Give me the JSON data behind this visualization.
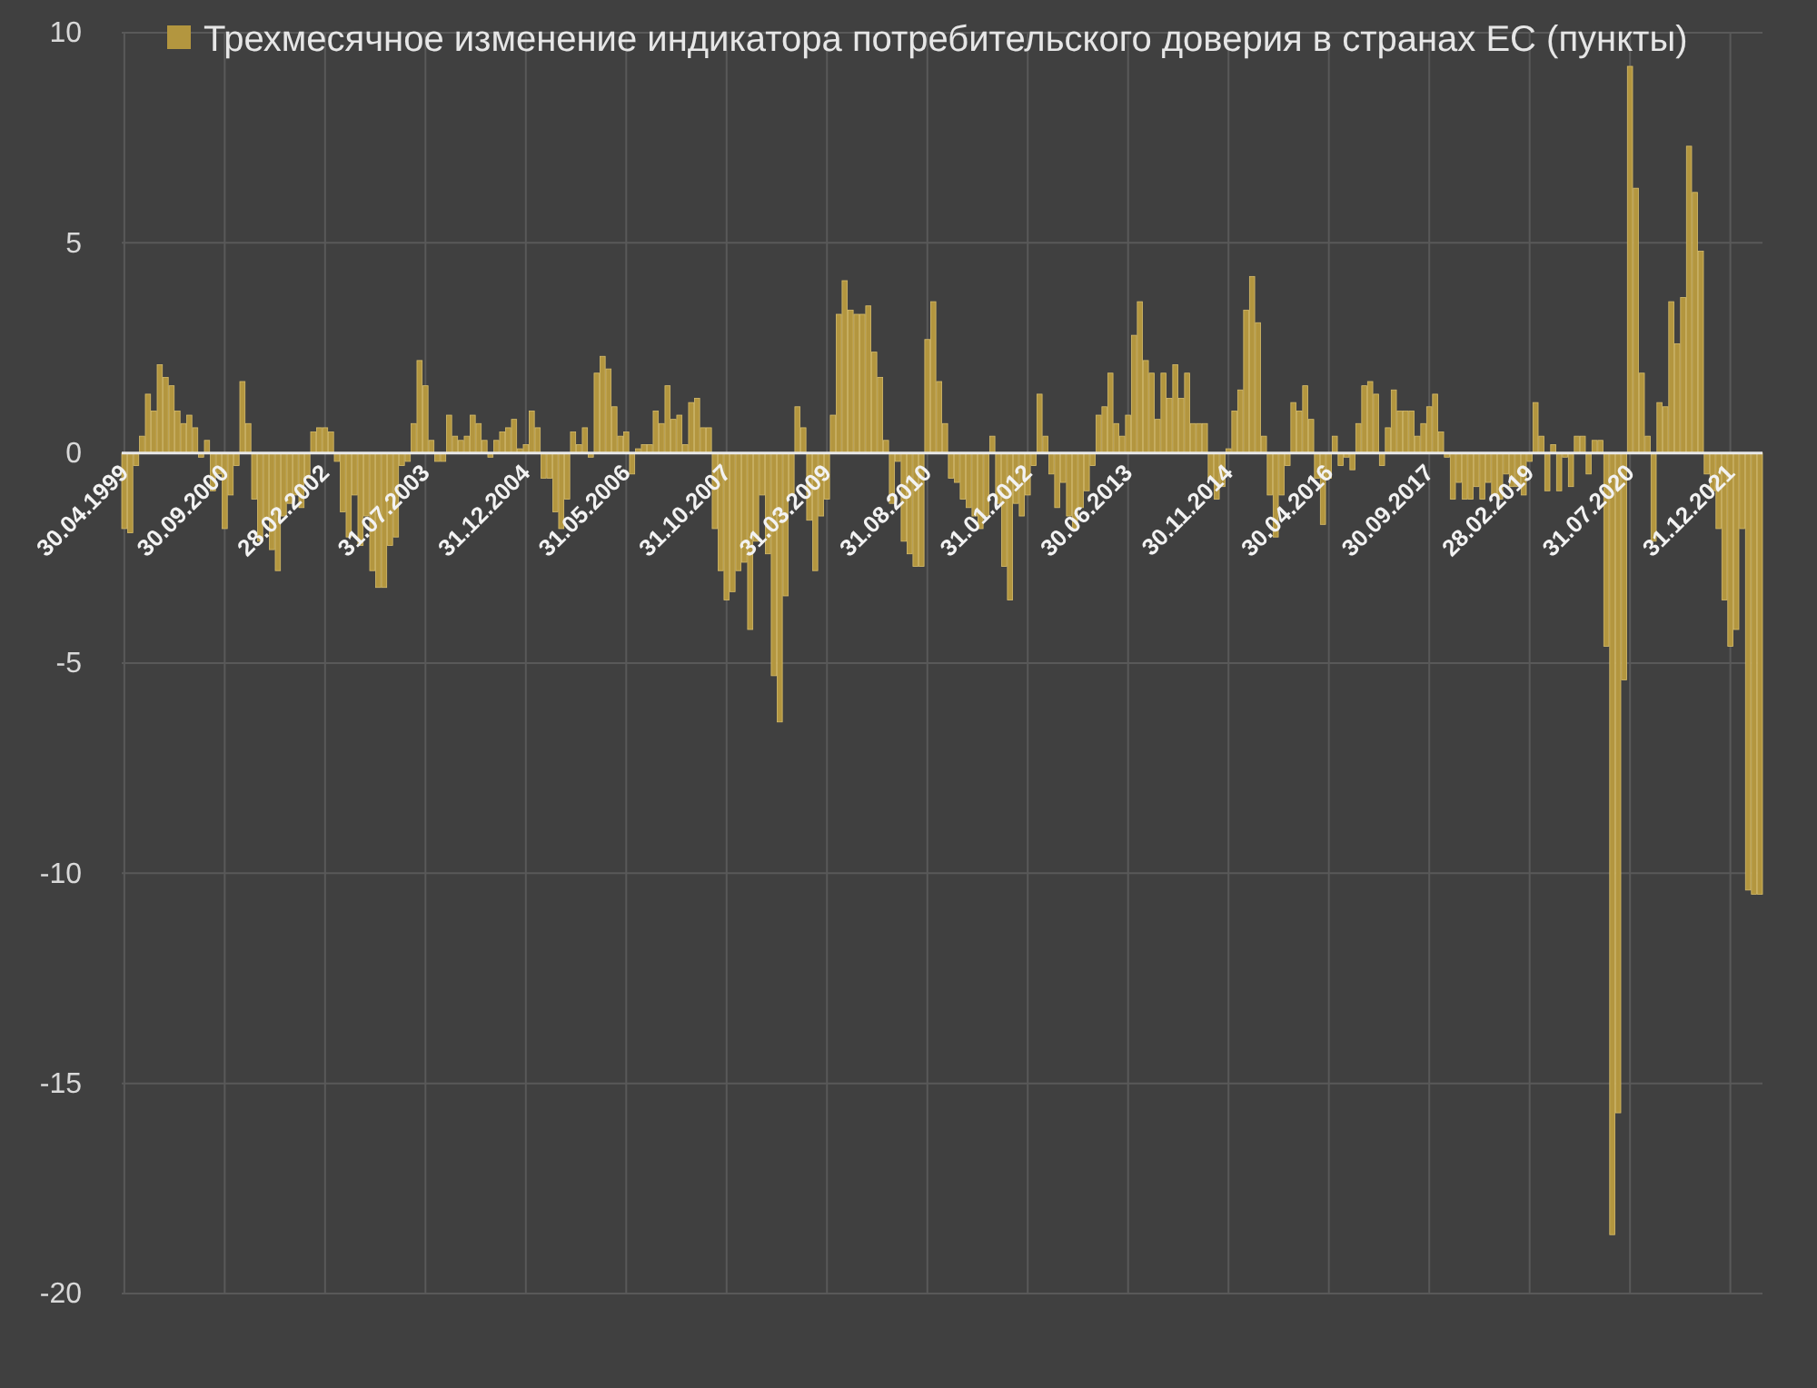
{
  "chart_data": {
    "type": "bar",
    "categories": [
      "30.04.1999",
      null,
      null,
      null,
      null,
      null,
      null,
      null,
      null,
      null,
      null,
      null,
      null,
      null,
      null,
      null,
      null,
      "30.09.2000",
      null,
      null,
      null,
      null,
      null,
      null,
      null,
      null,
      null,
      null,
      null,
      null,
      null,
      null,
      null,
      null,
      "28.02.2002",
      null,
      null,
      null,
      null,
      null,
      null,
      null,
      null,
      null,
      null,
      null,
      null,
      null,
      null,
      null,
      null,
      "31.07.2003",
      null,
      null,
      null,
      null,
      null,
      null,
      null,
      null,
      null,
      null,
      null,
      null,
      null,
      null,
      null,
      null,
      "31.12.2004",
      null,
      null,
      null,
      null,
      null,
      null,
      null,
      null,
      null,
      null,
      null,
      null,
      null,
      null,
      null,
      null,
      "31.05.2006",
      null,
      null,
      null,
      null,
      null,
      null,
      null,
      null,
      null,
      null,
      null,
      null,
      null,
      null,
      null,
      null,
      "31.10.2007",
      null,
      null,
      null,
      null,
      null,
      null,
      null,
      null,
      null,
      null,
      null,
      null,
      null,
      null,
      null,
      null,
      "31.03.2009",
      null,
      null,
      null,
      null,
      null,
      null,
      null,
      null,
      null,
      null,
      null,
      null,
      null,
      null,
      null,
      null,
      "31.08.2010",
      null,
      null,
      null,
      null,
      null,
      null,
      null,
      null,
      null,
      null,
      null,
      null,
      null,
      null,
      null,
      null,
      "31.01.2012",
      null,
      null,
      null,
      null,
      null,
      null,
      null,
      null,
      null,
      null,
      null,
      null,
      null,
      null,
      null,
      null,
      "30.06.2013",
      null,
      null,
      null,
      null,
      null,
      null,
      null,
      null,
      null,
      null,
      null,
      null,
      null,
      null,
      null,
      null,
      "30.11.2014",
      null,
      null,
      null,
      null,
      null,
      null,
      null,
      null,
      null,
      null,
      null,
      null,
      null,
      null,
      null,
      null,
      "30.04.2016",
      null,
      null,
      null,
      null,
      null,
      null,
      null,
      null,
      null,
      null,
      null,
      null,
      null,
      null,
      null,
      null,
      "30.09.2017",
      null,
      null,
      null,
      null,
      null,
      null,
      null,
      null,
      null,
      null,
      null,
      null,
      null,
      null,
      null,
      null,
      "28.02.2019",
      null,
      null,
      null,
      null,
      null,
      null,
      null,
      null,
      null,
      null,
      null,
      null,
      null,
      null,
      null,
      null,
      "31.07.2020",
      null,
      null,
      null,
      null,
      null,
      null,
      null,
      null,
      null,
      null,
      null,
      null,
      null,
      null,
      null,
      null,
      "31.12.2021",
      null,
      null,
      null,
      null,
      null
    ],
    "series": [
      {
        "name": "Трехмесячное изменение индикатора потребительского доверия в странах ЕС (пункты)",
        "color": "#b3963f",
        "values": [
          -1.8,
          -1.9,
          -0.3,
          0.4,
          1.4,
          1.0,
          2.1,
          1.8,
          1.6,
          1.0,
          0.7,
          0.9,
          0.6,
          -0.1,
          0.3,
          -0.9,
          -0.5,
          -1.8,
          -1.0,
          -0.3,
          1.7,
          0.7,
          -1.1,
          -2.1,
          -1.6,
          -2.3,
          -2.8,
          -1.5,
          -1.2,
          -1.0,
          -1.3,
          -0.6,
          0.5,
          0.6,
          0.6,
          0.5,
          -0.2,
          -1.4,
          -2.0,
          -1.0,
          -2.2,
          -1.5,
          -2.8,
          -3.2,
          -3.2,
          -2.2,
          -2.0,
          -0.3,
          -0.2,
          0.7,
          2.2,
          1.6,
          0.3,
          -0.2,
          -0.2,
          0.9,
          0.4,
          0.3,
          0.4,
          0.9,
          0.7,
          0.3,
          -0.1,
          0.3,
          0.5,
          0.6,
          0.8,
          0.1,
          0.2,
          1.0,
          0.6,
          -0.6,
          -0.6,
          -1.4,
          -1.8,
          -1.1,
          0.5,
          0.2,
          0.6,
          -0.1,
          1.9,
          2.3,
          2.0,
          1.1,
          0.4,
          0.5,
          -0.5,
          0.1,
          0.2,
          0.2,
          1.0,
          0.7,
          1.6,
          0.8,
          0.9,
          0.2,
          1.2,
          1.3,
          0.6,
          0.6,
          -1.8,
          -2.8,
          -3.5,
          -3.3,
          -2.8,
          -2.6,
          -4.2,
          -2.1,
          -1.0,
          -2.4,
          -5.3,
          -6.4,
          -3.4,
          -1.0,
          1.1,
          0.6,
          -1.6,
          -2.8,
          -1.5,
          -1.1,
          0.9,
          3.3,
          4.1,
          3.4,
          3.3,
          3.3,
          3.5,
          2.4,
          1.8,
          0.3,
          -1.2,
          -0.2,
          -2.1,
          -2.4,
          -2.7,
          -2.7,
          2.7,
          3.6,
          1.7,
          0.7,
          -0.6,
          -0.7,
          -1.1,
          -1.3,
          -1.5,
          -1.8,
          -1.5,
          0.4,
          -1.2,
          -2.7,
          -3.5,
          -1.2,
          -1.5,
          -1.0,
          -0.3,
          1.4,
          0.4,
          -0.5,
          -1.3,
          -0.7,
          -1.5,
          -1.8,
          -1.3,
          -0.9,
          -0.3,
          0.9,
          1.1,
          1.9,
          0.7,
          0.4,
          0.9,
          2.8,
          3.6,
          2.2,
          1.9,
          0.8,
          1.9,
          1.3,
          2.1,
          1.3,
          1.9,
          0.7,
          0.7,
          0.7,
          -0.6,
          -1.1,
          -0.8,
          0.1,
          1.0,
          1.5,
          3.4,
          4.2,
          3.1,
          0.4,
          -1.0,
          -2.0,
          -1.0,
          -0.3,
          1.2,
          1.0,
          1.6,
          0.8,
          -0.6,
          -1.7,
          -0.6,
          0.4,
          -0.3,
          -0.1,
          -0.4,
          0.7,
          1.6,
          1.7,
          1.4,
          -0.3,
          0.6,
          1.5,
          1.0,
          1.0,
          1.0,
          0.4,
          0.7,
          1.1,
          1.4,
          0.5,
          -0.1,
          -1.1,
          -0.7,
          -1.1,
          -1.1,
          -0.8,
          -1.1,
          -0.7,
          -1.0,
          -1.1,
          -0.5,
          -0.8,
          -0.8,
          -1.0,
          -0.2,
          1.2,
          0.4,
          -0.9,
          0.2,
          -0.9,
          -0.1,
          -0.8,
          0.4,
          0.4,
          -0.5,
          0.3,
          0.3,
          -4.6,
          -18.6,
          -15.7,
          -5.4,
          9.2,
          6.3,
          1.9,
          0.4,
          -2.1,
          1.2,
          1.1,
          3.6,
          2.6,
          3.7,
          7.3,
          6.2,
          4.8,
          -0.5,
          -0.9,
          -1.8,
          -3.5,
          -4.6,
          -4.2,
          -1.8,
          -10.4,
          -10.5,
          -10.5
        ]
      }
    ],
    "ylim": [
      -20,
      10
    ],
    "yticks": [
      -20,
      -15,
      -10,
      -5,
      0,
      5,
      10
    ],
    "grid": true,
    "legend": "top left"
  }
}
